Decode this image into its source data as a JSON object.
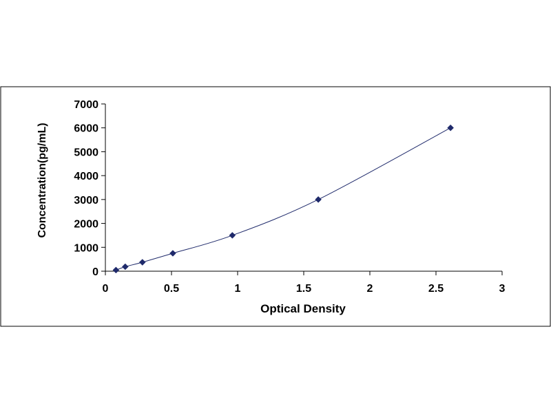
{
  "chart_data": {
    "type": "scatter",
    "title": "",
    "xlabel": "Optical Density",
    "ylabel": "Concentration(pg/mL)",
    "xlim": [
      0,
      3
    ],
    "ylim": [
      0,
      7000
    ],
    "x_ticks": [
      "0",
      "0.5",
      "1",
      "1.5",
      "2",
      "2.5",
      "3"
    ],
    "y_ticks": [
      "0",
      "1000",
      "2000",
      "3000",
      "4000",
      "5000",
      "6000",
      "7000"
    ],
    "grid": false,
    "legend": "none",
    "series": [
      {
        "marker": "diamond",
        "color": "#1f2a6b",
        "line": "smooth",
        "points": [
          {
            "x": 0.08,
            "y": 47
          },
          {
            "x": 0.15,
            "y": 188
          },
          {
            "x": 0.28,
            "y": 375
          },
          {
            "x": 0.51,
            "y": 750
          },
          {
            "x": 0.96,
            "y": 1500
          },
          {
            "x": 1.61,
            "y": 3000
          },
          {
            "x": 2.61,
            "y": 6000
          }
        ]
      }
    ]
  }
}
